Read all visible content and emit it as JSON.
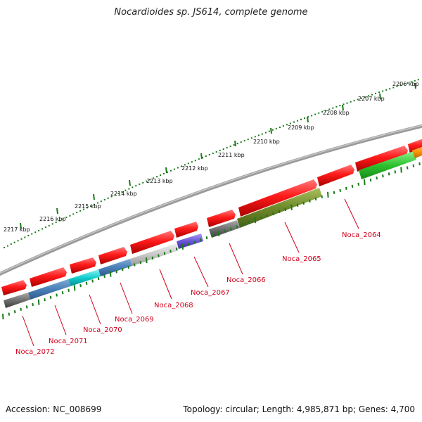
{
  "title": "Nocardioides sp. JS614, complete genome",
  "footer": {
    "accession": "Accession: NC_008699",
    "summary": "Topology: circular; Length: 4,985,871 bp; Genes: 4,700"
  },
  "ruler": {
    "labels": [
      "2206 kbp",
      "2207 kbp",
      "2208 kbp",
      "2209 kbp",
      "2210 kbp",
      "2211 kbp",
      "2212 kbp",
      "2213 kbp",
      "2214 kbp",
      "2215 kbp",
      "2216 kbp",
      "2217 kbp"
    ]
  },
  "genes": {
    "labels": [
      "Noca_2064",
      "Noca_2065",
      "Noca_2066",
      "Noca_2067",
      "Noca_2068",
      "Noca_2069",
      "Noca_2070",
      "Noca_2071",
      "Noca_2072"
    ]
  },
  "colors": {
    "forward_gene": "#e8000b",
    "backbone": "#808080",
    "label_red": "#d0021b",
    "tick_green": "#1a7a1a"
  }
}
